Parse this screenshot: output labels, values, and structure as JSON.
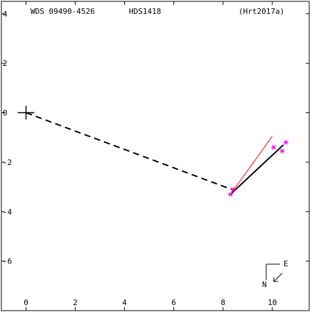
{
  "chart_data": {
    "type": "scatter",
    "header": {
      "left": "WDS 09490-4526",
      "center": "HDS1418",
      "right": "(Hrt2017a)"
    },
    "x_ticks": [
      "0",
      "2",
      "4",
      "6",
      "8",
      "10"
    ],
    "y_ticks": [
      "4",
      "2",
      "0",
      "-2",
      "-4",
      "-6"
    ],
    "xlim": [
      -1,
      11.5
    ],
    "ylim": [
      -8,
      4.5
    ],
    "primary": {
      "x": 0,
      "y": 0
    },
    "dashed_line": {
      "from": [
        0,
        0
      ],
      "to": [
        8.35,
        -3.1
      ]
    },
    "orbit_line": {
      "from": [
        8.3,
        -3.3
      ],
      "to": [
        10.45,
        -1.3
      ],
      "color": "#000000"
    },
    "red_line": {
      "from": [
        8.3,
        -3.3
      ],
      "to": [
        10.0,
        -0.95
      ],
      "color": "#ff0000"
    },
    "observations": {
      "color": "#ff00ff",
      "points": [
        [
          8.3,
          -3.3
        ],
        [
          8.4,
          -3.1
        ],
        [
          10.05,
          -1.4
        ],
        [
          10.4,
          -1.55
        ],
        [
          10.55,
          -1.2
        ]
      ]
    },
    "compass": {
      "north_label": "N",
      "east_label": "E"
    }
  }
}
